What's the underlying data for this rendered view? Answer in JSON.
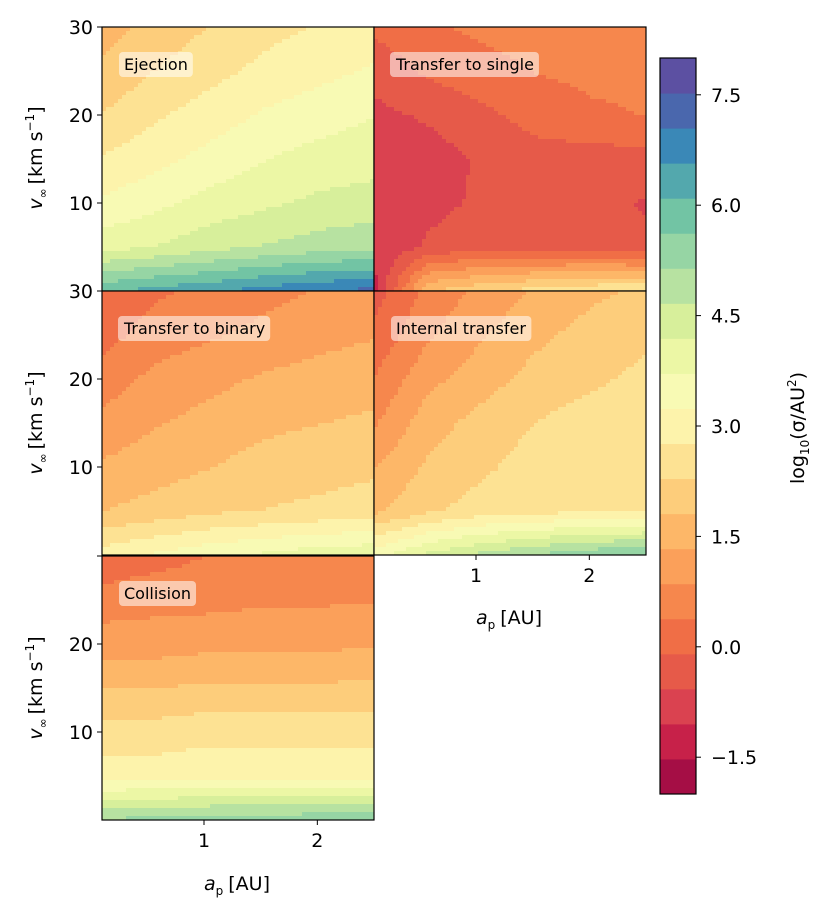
{
  "chart_data": {
    "type": "heatmap",
    "description_units": "log10(cross section / AU^2)",
    "x_axis": {
      "symbol": "a",
      "subscript": "p",
      "unit": "[AU]",
      "range": [
        0.1,
        2.5
      ],
      "ticks": [
        1,
        2
      ],
      "tick_labels": [
        "1",
        "2"
      ]
    },
    "y_axis": {
      "symbol": "v",
      "subscript": "∞",
      "unit_prefix": "[km s",
      "unit_exp": "−1",
      "unit_suffix": "]",
      "range": [
        0,
        30
      ],
      "ticks": [
        10,
        20,
        30
      ],
      "tick_labels": [
        "10",
        "20",
        "30"
      ]
    },
    "colorbar": {
      "label_prefix": "log",
      "label_sub": "10",
      "label_mid": "(σ/AU",
      "label_sup": "2",
      "label_suffix": ")",
      "range": [
        -2.0,
        8.0
      ],
      "levels": 20,
      "ticks": [
        -1.5,
        0.0,
        1.5,
        3.0,
        4.5,
        6.0,
        7.5
      ],
      "tick_labels": [
        "−1.5",
        "0.0",
        "1.5",
        "3.0",
        "4.5",
        "6.0",
        "7.5"
      ],
      "colors": [
        "#a50e45",
        "#c72149",
        "#da4250",
        "#e65a49",
        "#f06e46",
        "#f6874d",
        "#fba05a",
        "#fdb768",
        "#fdcd7b",
        "#fde293",
        "#fdf3ab",
        "#f8fab4",
        "#ecf7a5",
        "#d7ef9b",
        "#b7e2a1",
        "#96d5a4",
        "#72c4a4",
        "#53a8ad",
        "#3a88b7",
        "#4a67ad",
        "#5c50a2"
      ]
    },
    "panels": [
      {
        "id": "ejection",
        "label": "Ejection",
        "grid": [
          [
            6.0,
            6.3,
            6.5,
            6.8,
            7.0,
            7.2
          ],
          [
            4.0,
            4.2,
            4.5,
            4.7,
            4.9,
            5.0
          ],
          [
            3.3,
            3.6,
            3.9,
            4.1,
            4.3,
            4.4
          ],
          [
            2.8,
            3.1,
            3.4,
            3.7,
            3.9,
            4.0
          ],
          [
            2.3,
            2.7,
            3.0,
            3.3,
            3.5,
            3.7
          ],
          [
            1.9,
            2.3,
            2.6,
            2.9,
            3.1,
            3.3
          ],
          [
            1.6,
            2.0,
            2.3,
            2.6,
            2.8,
            3.0
          ]
        ]
      },
      {
        "id": "transfer-to-single",
        "label": "Transfer to single",
        "grid": [
          [
            -1.2,
            1.8,
            2.2,
            2.5,
            2.7,
            2.8
          ],
          [
            -1.0,
            -0.5,
            -0.3,
            -0.3,
            -0.4,
            -0.5
          ],
          [
            -1.0,
            -0.7,
            -0.5,
            -0.4,
            -0.5,
            -0.6
          ],
          [
            -0.9,
            -0.8,
            -0.5,
            -0.3,
            -0.3,
            -0.3
          ],
          [
            -0.7,
            -0.5,
            -0.2,
            0.1,
            0.3,
            0.4
          ],
          [
            -0.4,
            0.0,
            0.2,
            0.4,
            0.5,
            0.5
          ],
          [
            0.0,
            0.3,
            0.5,
            0.6,
            0.7,
            0.7
          ]
        ]
      },
      {
        "id": "transfer-to-binary",
        "label": "Transfer to binary",
        "grid": [
          [
            3.0,
            3.3,
            3.6,
            3.8,
            4.0,
            4.1
          ],
          [
            1.8,
            2.0,
            2.2,
            2.3,
            2.4,
            2.5
          ],
          [
            1.4,
            1.6,
            1.8,
            2.0,
            2.1,
            2.2
          ],
          [
            1.0,
            1.3,
            1.5,
            1.7,
            1.8,
            1.9
          ],
          [
            0.6,
            1.0,
            1.2,
            1.4,
            1.5,
            1.6
          ],
          [
            0.2,
            0.6,
            0.8,
            1.0,
            1.2,
            1.3
          ],
          [
            -0.1,
            0.3,
            0.5,
            0.7,
            0.9,
            1.0
          ]
        ]
      },
      {
        "id": "internal-transfer",
        "label": "Internal transfer",
        "grid": [
          [
            3.5,
            4.3,
            4.8,
            5.2,
            5.5,
            5.7
          ],
          [
            1.7,
            2.2,
            2.5,
            2.6,
            2.7,
            2.7
          ],
          [
            1.3,
            1.9,
            2.2,
            2.5,
            2.6,
            2.6
          ],
          [
            0.8,
            1.6,
            2.0,
            2.3,
            2.5,
            2.6
          ],
          [
            0.4,
            1.2,
            1.6,
            2.0,
            2.2,
            2.4
          ],
          [
            0.0,
            0.8,
            1.3,
            1.7,
            2.0,
            2.2
          ],
          [
            -0.3,
            0.5,
            1.0,
            1.4,
            1.7,
            1.9
          ]
        ]
      },
      {
        "id": "collision",
        "label": "Collision",
        "grid": [
          [
            5.2,
            5.3,
            5.4,
            5.4,
            5.5,
            5.5
          ],
          [
            3.0,
            3.0,
            3.1,
            3.1,
            3.1,
            3.1
          ],
          [
            2.5,
            2.5,
            2.6,
            2.6,
            2.6,
            2.6
          ],
          [
            1.8,
            1.8,
            1.9,
            1.9,
            1.9,
            1.9
          ],
          [
            1.1,
            1.1,
            1.2,
            1.2,
            1.2,
            1.3
          ],
          [
            0.6,
            0.7,
            0.7,
            0.8,
            0.8,
            0.8
          ],
          [
            0.0,
            0.2,
            0.4,
            0.5,
            0.5,
            0.6
          ]
        ]
      }
    ]
  }
}
